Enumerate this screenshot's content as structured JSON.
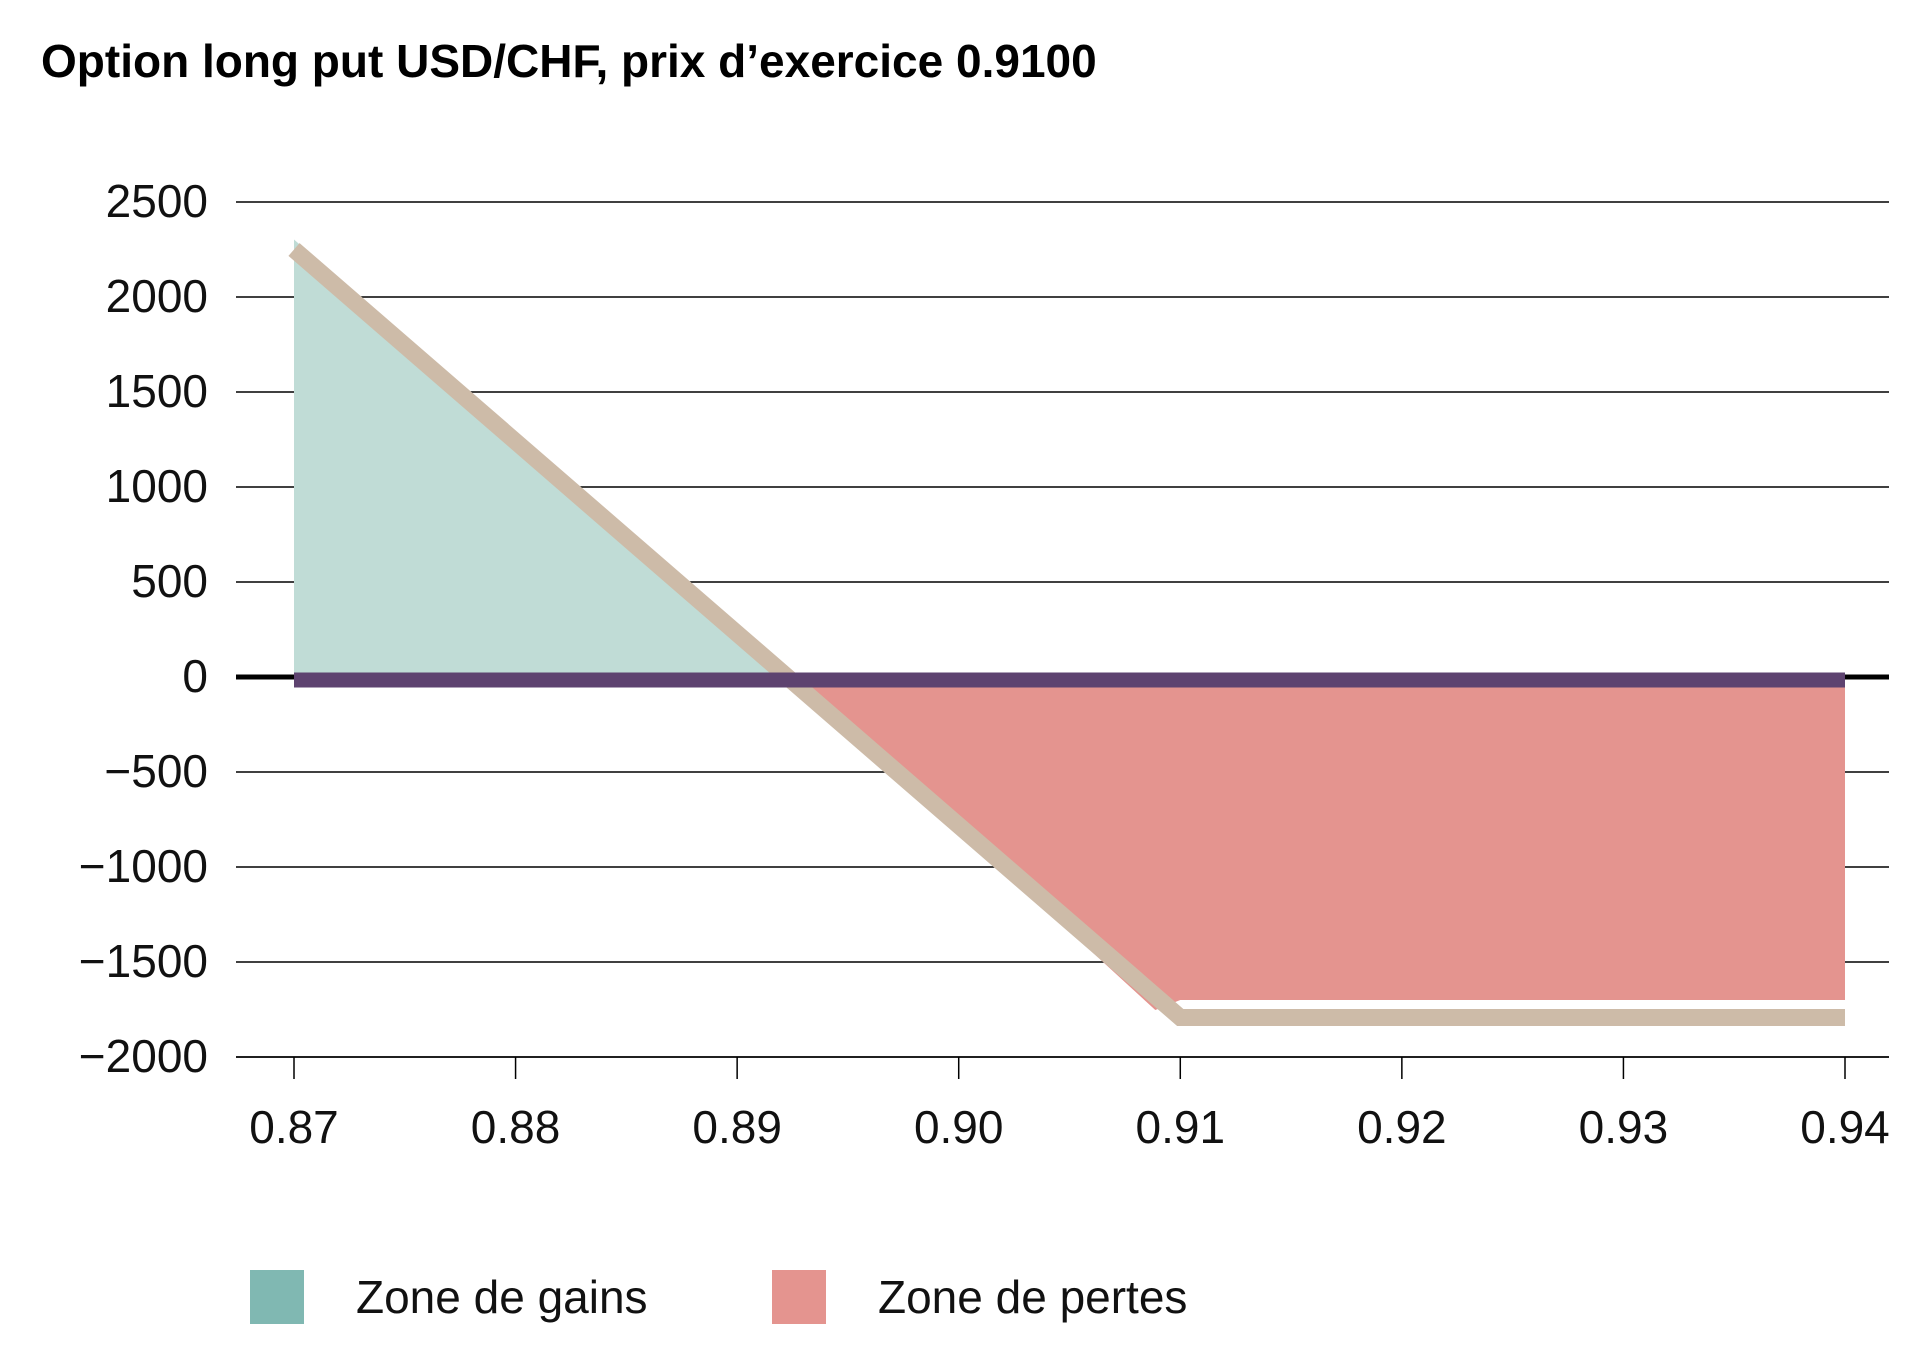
{
  "chart_data": {
    "type": "line",
    "title": "Option long put USD/CHF, prix d’exercice 0.9100",
    "xlabel": "",
    "ylabel": "",
    "x_ticks": [
      "0.87",
      "0.88",
      "0.89",
      "0.90",
      "0.91",
      "0.92",
      "0.93",
      "0.94"
    ],
    "y_ticks": [
      "2500",
      "2000",
      "1500",
      "1000",
      "500",
      "0",
      "−500",
      "−1000",
      "−1500",
      "−2000"
    ],
    "xlim": [
      0.87,
      0.94
    ],
    "ylim": [
      -2000,
      2500
    ],
    "grid": true,
    "strike": 0.91,
    "series": [
      {
        "role": "payoff",
        "x": [
          0.87,
          0.91,
          0.94
        ],
        "y": [
          2250,
          -1750,
          -1750
        ],
        "color": "#cdbba8"
      },
      {
        "role": "zero-line",
        "x": [
          0.87,
          0.94
        ],
        "y": [
          0,
          0
        ],
        "color": "#5e4370"
      }
    ],
    "areas": [
      {
        "name": "Zone de gains",
        "x_range": [
          0.87,
          0.8925
        ],
        "color": "#c0dcd6",
        "legend_color": "#80b8b2"
      },
      {
        "name": "Zone de pertes",
        "x_range": [
          0.8925,
          0.94
        ],
        "color": "#e4948f",
        "legend_color": "#e4948f"
      }
    ],
    "legend": {
      "placement": "bottom",
      "items": [
        "Zone de gains",
        "Zone de pertes"
      ]
    }
  }
}
